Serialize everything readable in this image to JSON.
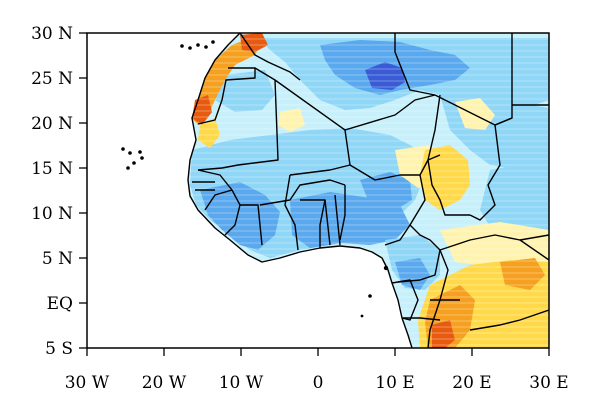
{
  "map": {
    "lon_range": [
      -30,
      30
    ],
    "lat_range": [
      -5,
      30
    ],
    "x_ticks": [
      {
        "value": -30,
        "label": "30 W"
      },
      {
        "value": -20,
        "label": "20 W"
      },
      {
        "value": -10,
        "label": "10 W"
      },
      {
        "value": 0,
        "label": "0"
      },
      {
        "value": 10,
        "label": "10 E"
      },
      {
        "value": 20,
        "label": "20 E"
      },
      {
        "value": 30,
        "label": "30 E"
      }
    ],
    "y_ticks": [
      {
        "value": 30,
        "label": "30 N"
      },
      {
        "value": 25,
        "label": "25 N"
      },
      {
        "value": 20,
        "label": "20 N"
      },
      {
        "value": 15,
        "label": "15 N"
      },
      {
        "value": 10,
        "label": "10 N"
      },
      {
        "value": 5,
        "label": "5 N"
      },
      {
        "value": 0,
        "label": "EQ"
      },
      {
        "value": -5,
        "label": "5 S"
      }
    ],
    "colors": {
      "ocean": "#ffffff",
      "dark_blue": "#3a5bd6",
      "mid_blue": "#5aa8ee",
      "light_blue": "#8fd6f7",
      "pale_cyan": "#c7f0fb",
      "pale_yellow": "#fff3b0",
      "yellow": "#ffd94a",
      "orange": "#f5a020",
      "red_orange": "#e85a10",
      "border": "#000000"
    }
  }
}
